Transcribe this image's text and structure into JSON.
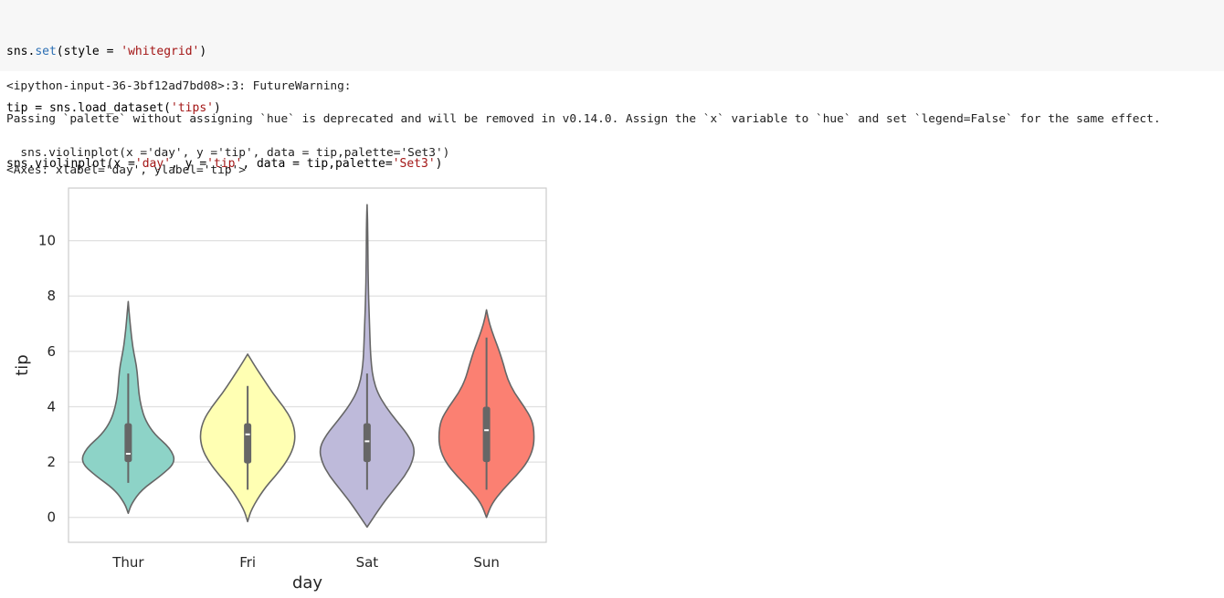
{
  "code": {
    "line1": {
      "prefix": "sns.",
      "attr": "set",
      "middle": "(style = ",
      "str": "'whitegrid'",
      "suffix": ")"
    },
    "line2": {
      "prefix": "tip = sns.load_dataset(",
      "str": "'tips'",
      "suffix": ")"
    },
    "line3": {
      "prefix": "sns.violinplot(x =",
      "str1": "'day'",
      "mid1": ", y =",
      "str2": "'tip'",
      "mid2": ", data = tip,palette=",
      "str3": "'Set3'",
      "suffix": ")"
    }
  },
  "output": {
    "warning_header": "<ipython-input-36-3bf12ad7bd08>:3: FutureWarning:",
    "warning_message": "Passing `palette` without assigning `hue` is deprecated and will be removed in v0.14.0. Assign the `x` variable to `hue` and set `legend=False` for the same effect.",
    "warning_source": "  sns.violinplot(x ='day', y ='tip', data = tip,palette='Set3')",
    "axes_repr": "<Axes: xlabel='day', ylabel='tip'>"
  },
  "chart_data": {
    "type": "violin",
    "title": "",
    "xlabel": "day",
    "ylabel": "tip",
    "ylim": [
      -0.9,
      11.9
    ],
    "yticks": [
      0,
      2,
      4,
      6,
      8,
      10
    ],
    "grid": true,
    "categories": [
      "Thur",
      "Fri",
      "Sat",
      "Sun"
    ],
    "colors": [
      "#8dd3c7",
      "#ffffb3",
      "#bebada",
      "#fb8072"
    ],
    "stats": [
      {
        "day": "Thur",
        "min": 1.25,
        "q1": 2.0,
        "median": 2.3,
        "q3": 3.4,
        "max": 5.2,
        "kde_min": 0.15,
        "kde_max": 7.8
      },
      {
        "day": "Fri",
        "min": 1.0,
        "q1": 1.95,
        "median": 3.0,
        "q3": 3.4,
        "max": 4.75,
        "kde_min": -0.15,
        "kde_max": 5.9
      },
      {
        "day": "Sat",
        "min": 1.0,
        "q1": 2.0,
        "median": 2.75,
        "q3": 3.4,
        "max": 5.2,
        "kde_min": -0.35,
        "kde_max": 11.3
      },
      {
        "day": "Sun",
        "min": 1.0,
        "q1": 2.0,
        "median": 3.15,
        "q3": 4.0,
        "max": 6.5,
        "kde_min": 0.0,
        "kde_max": 7.5
      }
    ],
    "violin_profiles": [
      [
        [
          0.15,
          0.0
        ],
        [
          0.5,
          0.07
        ],
        [
          1.0,
          0.28
        ],
        [
          1.5,
          0.68
        ],
        [
          2.0,
          1.0
        ],
        [
          2.5,
          0.88
        ],
        [
          3.0,
          0.55
        ],
        [
          3.5,
          0.36
        ],
        [
          4.0,
          0.27
        ],
        [
          4.5,
          0.22
        ],
        [
          5.0,
          0.2
        ],
        [
          5.5,
          0.17
        ],
        [
          6.0,
          0.11
        ],
        [
          6.5,
          0.07
        ],
        [
          7.0,
          0.04
        ],
        [
          7.8,
          0.0
        ]
      ],
      [
        [
          -0.15,
          0.0
        ],
        [
          0.3,
          0.08
        ],
        [
          1.0,
          0.33
        ],
        [
          1.5,
          0.58
        ],
        [
          2.0,
          0.81
        ],
        [
          2.5,
          0.96
        ],
        [
          3.0,
          1.0
        ],
        [
          3.5,
          0.93
        ],
        [
          4.0,
          0.75
        ],
        [
          4.5,
          0.52
        ],
        [
          5.0,
          0.33
        ],
        [
          5.5,
          0.14
        ],
        [
          5.9,
          0.0
        ]
      ],
      [
        [
          -0.35,
          0.0
        ],
        [
          0.5,
          0.33
        ],
        [
          1.0,
          0.56
        ],
        [
          1.5,
          0.79
        ],
        [
          2.0,
          0.95
        ],
        [
          2.5,
          1.0
        ],
        [
          3.0,
          0.85
        ],
        [
          3.5,
          0.61
        ],
        [
          4.0,
          0.39
        ],
        [
          4.5,
          0.22
        ],
        [
          5.0,
          0.13
        ],
        [
          5.5,
          0.09
        ],
        [
          6.0,
          0.07
        ],
        [
          7.0,
          0.05
        ],
        [
          8.0,
          0.03
        ],
        [
          9.0,
          0.02
        ],
        [
          10.0,
          0.015
        ],
        [
          10.8,
          0.01
        ],
        [
          11.3,
          0.0
        ]
      ],
      [
        [
          0.0,
          0.0
        ],
        [
          0.5,
          0.11
        ],
        [
          1.0,
          0.34
        ],
        [
          1.5,
          0.62
        ],
        [
          2.0,
          0.86
        ],
        [
          2.5,
          0.98
        ],
        [
          3.0,
          1.0
        ],
        [
          3.5,
          0.96
        ],
        [
          4.0,
          0.79
        ],
        [
          4.5,
          0.58
        ],
        [
          5.0,
          0.44
        ],
        [
          5.5,
          0.36
        ],
        [
          6.0,
          0.27
        ],
        [
          6.5,
          0.16
        ],
        [
          7.0,
          0.06
        ],
        [
          7.5,
          0.0
        ]
      ]
    ],
    "max_halfwidth_ratio": 0.8
  }
}
